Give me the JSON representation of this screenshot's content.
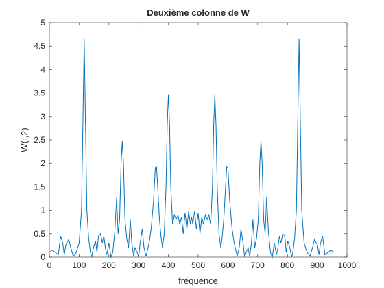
{
  "chart_data": {
    "type": "line",
    "title": "Deuxième colonne de W",
    "xlabel": "fréquence",
    "ylabel": "W(:,2)",
    "series": [
      {
        "color": "#0072bd",
        "x": [
          0,
          10,
          20,
          30,
          38,
          45,
          50,
          55,
          65,
          72,
          80,
          90,
          100,
          108,
          113,
          117,
          121,
          126,
          132,
          138,
          142,
          148,
          155,
          160,
          165,
          172,
          178,
          183,
          188,
          193,
          200,
          207,
          213,
          220,
          226,
          231,
          236,
          241,
          245,
          249,
          254,
          260,
          266,
          272,
          277,
          283,
          288,
          295,
          300,
          305,
          312,
          318,
          325,
          335,
          342,
          350,
          356,
          360,
          364,
          370,
          375,
          380,
          386,
          392,
          396,
          400,
          404,
          408,
          414,
          420,
          426,
          432,
          438,
          444,
          450,
          456,
          462,
          468,
          474,
          478,
          482,
          488,
          494,
          500,
          506,
          512,
          518,
          524,
          530,
          536,
          542,
          548,
          552,
          556,
          560,
          564,
          570,
          576,
          581,
          586,
          592,
          596,
          600,
          606,
          614,
          621,
          631,
          638,
          644,
          651,
          656,
          661,
          668,
          673,
          679,
          684,
          690,
          696,
          702,
          707,
          711,
          715,
          720,
          725,
          730,
          736,
          743,
          749,
          756,
          763,
          768,
          773,
          778,
          784,
          791,
          796,
          801,
          808,
          814,
          818,
          824,
          830,
          835,
          839,
          843,
          848,
          856,
          866,
          876,
          884,
          891,
          901,
          906,
          911,
          918,
          926,
          936,
          946,
          956
        ],
        "values": [
          0.1,
          0.15,
          0.1,
          0.05,
          0.45,
          0.3,
          0.05,
          0.25,
          0.38,
          0.2,
          0.02,
          0.1,
          0.3,
          1.0,
          3.0,
          4.65,
          3.0,
          1.0,
          0.4,
          0.1,
          0.0,
          0.2,
          0.35,
          0.1,
          0.45,
          0.5,
          0.3,
          0.45,
          0.2,
          0.05,
          0.3,
          0.0,
          0.1,
          0.55,
          1.27,
          0.5,
          0.8,
          2.0,
          2.47,
          2.0,
          0.8,
          0.4,
          0.2,
          0.8,
          0.3,
          0.02,
          0.2,
          0.1,
          0.0,
          0.3,
          0.6,
          0.2,
          0.02,
          0.3,
          0.6,
          1.2,
          1.9,
          1.93,
          1.5,
          0.8,
          0.45,
          0.2,
          0.5,
          1.5,
          2.8,
          3.47,
          2.8,
          1.5,
          0.7,
          0.9,
          0.8,
          0.9,
          0.7,
          0.85,
          0.5,
          0.95,
          0.6,
          0.98,
          0.7,
          0.85,
          0.7,
          0.98,
          0.6,
          0.95,
          0.5,
          0.85,
          0.7,
          0.9,
          0.8,
          0.9,
          0.7,
          1.5,
          2.8,
          3.47,
          2.8,
          1.5,
          0.5,
          0.2,
          0.45,
          0.8,
          1.5,
          1.93,
          1.9,
          1.2,
          0.6,
          0.3,
          0.02,
          0.2,
          0.6,
          0.3,
          0.0,
          0.1,
          0.2,
          0.02,
          0.3,
          0.8,
          0.2,
          0.4,
          0.8,
          2.0,
          2.47,
          2.0,
          0.8,
          0.5,
          1.27,
          0.55,
          0.1,
          0.0,
          0.3,
          0.05,
          0.2,
          0.45,
          0.3,
          0.5,
          0.45,
          0.1,
          0.35,
          0.2,
          0.0,
          0.1,
          0.4,
          1.0,
          3.0,
          4.65,
          3.0,
          1.0,
          0.3,
          0.1,
          0.02,
          0.2,
          0.38,
          0.25,
          0.05,
          0.3,
          0.45,
          0.05,
          0.1,
          0.15,
          0.1
        ]
      }
    ],
    "xlim": [
      0,
      1000
    ],
    "xticks": [
      0,
      100,
      200,
      300,
      400,
      500,
      600,
      700,
      800,
      900,
      1000
    ],
    "ylim": [
      0,
      5
    ],
    "yticks": [
      0,
      0.5,
      1,
      1.5,
      2,
      2.5,
      3,
      3.5,
      4,
      4.5,
      5
    ]
  }
}
